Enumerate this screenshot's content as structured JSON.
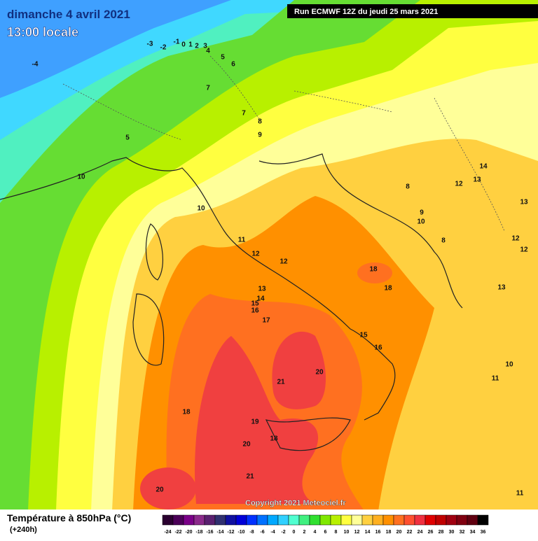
{
  "header": {
    "date": "dimanche 4 avril 2021",
    "time": "13:00 locale",
    "run": "Run ECMWF 12Z du jeudi 25 mars 2021"
  },
  "copyright": "Copyright 2021 Meteociel.fr",
  "legend": {
    "title": "Température à 850hPa (°C)",
    "lead": "(+240h)",
    "ticks": [
      -24,
      -22,
      -20,
      -18,
      -16,
      -14,
      -12,
      -10,
      -8,
      -6,
      -4,
      -2,
      0,
      2,
      4,
      6,
      8,
      10,
      12,
      14,
      16,
      18,
      20,
      22,
      24,
      26,
      28,
      30,
      32,
      34,
      36
    ],
    "colors": [
      "#2a0030",
      "#4b0058",
      "#7a0088",
      "#8b2a8b",
      "#5a2070",
      "#303070",
      "#1010a0",
      "#0000d8",
      "#0030ff",
      "#0070ff",
      "#00a8ff",
      "#30d0ff",
      "#50ffd0",
      "#40f080",
      "#30e030",
      "#80e800",
      "#b8f000",
      "#ffff40",
      "#ffff99",
      "#ffd040",
      "#ffb020",
      "#ff9000",
      "#ff7020",
      "#ff5030",
      "#f03040",
      "#e00000",
      "#c00000",
      "#a00010",
      "#800010",
      "#600010",
      "#000000"
    ]
  },
  "map": {
    "labels": [
      -3,
      -2,
      -1,
      0,
      1,
      2,
      3,
      4,
      5,
      -4,
      6,
      7,
      7,
      5,
      8,
      9,
      10,
      10,
      11,
      12,
      12,
      13,
      14,
      15,
      16,
      17,
      18,
      18,
      15,
      16,
      20,
      21,
      18,
      19,
      18,
      20,
      21,
      20,
      14,
      13,
      12,
      8,
      13,
      9,
      10,
      8,
      12,
      12,
      13,
      10,
      11,
      11
    ]
  }
}
